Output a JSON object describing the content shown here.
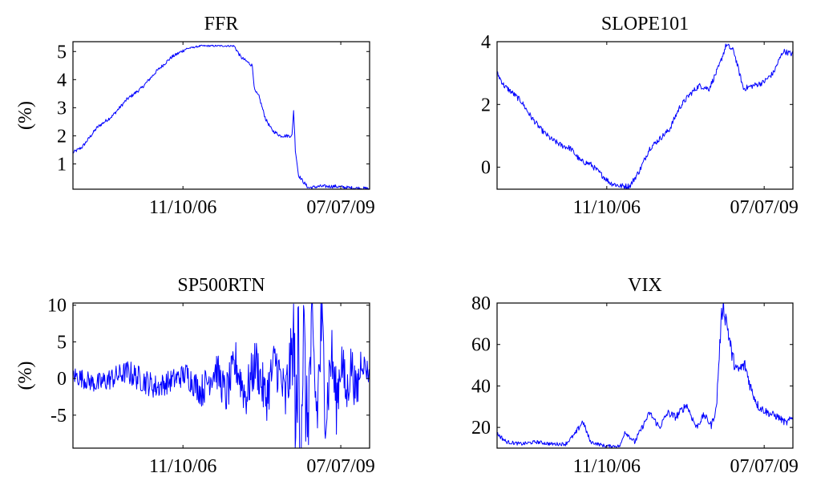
{
  "chart_data": [
    {
      "type": "line",
      "title": "FFR",
      "xlabel": "",
      "ylabel": "(%)",
      "xlim": [
        "2005-01-03",
        "2009-12-31"
      ],
      "ylim": [
        0.1,
        5.35
      ],
      "xticks": [
        "11/10/06",
        "07/07/09"
      ],
      "yticks": [
        1,
        2,
        3,
        4,
        5
      ],
      "grid": false,
      "series": [
        {
          "x": [
            "2005-01-03",
            "2005-03-01",
            "2005-06-01",
            "2005-09-01",
            "2005-12-01",
            "2006-03-01",
            "2006-06-01",
            "2006-09-01",
            "2006-12-01",
            "2007-03-01",
            "2007-06-01",
            "2007-08-01",
            "2007-09-20",
            "2007-11-01",
            "2008-01-10",
            "2008-01-25",
            "2008-02-20",
            "2008-04-01",
            "2008-05-10",
            "2008-07-01",
            "2008-09-10",
            "2008-09-20",
            "2008-10-01",
            "2008-10-20",
            "2008-11-20",
            "2008-12-20",
            "2009-03-01",
            "2009-06-01",
            "2009-09-01",
            "2009-12-31"
          ],
          "y": [
            1.4,
            1.6,
            2.3,
            2.7,
            3.3,
            3.7,
            4.3,
            4.8,
            5.1,
            5.2,
            5.2,
            5.2,
            5.2,
            4.8,
            4.5,
            3.6,
            3.4,
            2.6,
            2.2,
            2.0,
            2.0,
            2.9,
            1.5,
            0.6,
            0.35,
            0.15,
            0.2,
            0.2,
            0.15,
            0.12
          ]
        }
      ]
    },
    {
      "type": "line",
      "title": "SLOPE101",
      "xlabel": "",
      "ylabel": "",
      "xlim": [
        "2005-01-03",
        "2009-12-31"
      ],
      "ylim": [
        -0.7,
        4.0
      ],
      "xticks": [
        "11/10/06",
        "07/07/09"
      ],
      "yticks": [
        0,
        2,
        4
      ],
      "grid": false,
      "series": [
        {
          "x": [
            "2005-01-03",
            "2005-02-15",
            "2005-04-01",
            "2005-06-01",
            "2005-08-01",
            "2005-10-01",
            "2005-12-01",
            "2006-02-01",
            "2006-04-01",
            "2006-06-01",
            "2006-08-01",
            "2006-10-01",
            "2006-12-01",
            "2007-02-01",
            "2007-04-01",
            "2007-06-01",
            "2007-08-01",
            "2007-10-01",
            "2007-12-01",
            "2008-02-01",
            "2008-04-01",
            "2008-06-01",
            "2008-08-01",
            "2008-10-01",
            "2008-11-15",
            "2009-01-01",
            "2009-03-01",
            "2009-05-01",
            "2009-07-01",
            "2009-09-01",
            "2009-11-01",
            "2009-12-31"
          ],
          "y": [
            3.0,
            2.6,
            2.4,
            2.1,
            1.6,
            1.2,
            0.9,
            0.7,
            0.6,
            0.2,
            0.1,
            -0.2,
            -0.5,
            -0.6,
            -0.6,
            -0.1,
            0.6,
            0.9,
            1.2,
            1.9,
            2.3,
            2.6,
            2.5,
            3.2,
            3.9,
            3.7,
            2.5,
            2.6,
            2.7,
            3.0,
            3.7,
            3.6
          ]
        }
      ]
    },
    {
      "type": "line",
      "title": "SP500RTN",
      "xlabel": "",
      "ylabel": "(%)",
      "xlim": [
        "2005-01-03",
        "2009-12-31"
      ],
      "ylim": [
        -9.5,
        10.3
      ],
      "xticks": [
        "11/10/06",
        "07/07/09"
      ],
      "yticks": [
        -5,
        0,
        5,
        10
      ],
      "grid": false,
      "series": [
        {
          "x": [
            "2005-01-03",
            "2005-06-01",
            "2005-12-01",
            "2006-06-01",
            "2006-12-01",
            "2007-03-01",
            "2007-06-01",
            "2007-08-01",
            "2007-10-01",
            "2007-12-01",
            "2008-02-01",
            "2008-04-01",
            "2008-06-01",
            "2008-08-01",
            "2008-09-20",
            "2008-10-10",
            "2008-10-20",
            "2008-11-01",
            "2008-11-20",
            "2008-12-10",
            "2009-01-10",
            "2009-02-10",
            "2009-03-10",
            "2009-04-10",
            "2009-05-10",
            "2009-06-10",
            "2009-07-10",
            "2009-08-10",
            "2009-09-10",
            "2009-10-10",
            "2009-11-10",
            "2009-12-31"
          ],
          "y": [
            0.5,
            -0.8,
            0.9,
            -1.2,
            0.6,
            -1.8,
            1.4,
            -2.3,
            2.1,
            -2.5,
            2.4,
            -2.8,
            2.6,
            -2.9,
            4.8,
            -9.3,
            10.2,
            -8.6,
            6.5,
            -6.8,
            5.5,
            -4.9,
            6.8,
            -4.2,
            3.6,
            -3.5,
            3.0,
            -2.6,
            2.2,
            -2.5,
            2.5,
            0.5
          ]
        }
      ]
    },
    {
      "type": "line",
      "title": "VIX",
      "xlabel": "",
      "ylabel": "",
      "xlim": [
        "2005-01-03",
        "2009-12-31"
      ],
      "ylim": [
        10,
        80
      ],
      "xticks": [
        "11/10/06",
        "07/07/09"
      ],
      "yticks": [
        20,
        40,
        60,
        80
      ],
      "grid": false,
      "series": [
        {
          "x": [
            "2005-01-03",
            "2005-03-01",
            "2005-06-01",
            "2005-09-01",
            "2005-12-01",
            "2006-03-01",
            "2006-05-01",
            "2006-06-15",
            "2006-08-01",
            "2006-11-01",
            "2007-02-01",
            "2007-03-01",
            "2007-05-01",
            "2007-08-01",
            "2007-10-01",
            "2007-11-20",
            "2008-01-10",
            "2008-03-15",
            "2008-05-15",
            "2008-07-01",
            "2008-08-15",
            "2008-09-15",
            "2008-10-10",
            "2008-10-25",
            "2008-11-20",
            "2008-12-20",
            "2009-01-20",
            "2009-03-10",
            "2009-04-20",
            "2009-06-01",
            "2009-08-01",
            "2009-10-01",
            "2009-11-20",
            "2009-12-31"
          ],
          "y": [
            17,
            13,
            12,
            13,
            12,
            12,
            17,
            23,
            13,
            11,
            11,
            18,
            13,
            27,
            20,
            27,
            25,
            31,
            20,
            26,
            21,
            29,
            65,
            80,
            70,
            55,
            47,
            50,
            38,
            30,
            27,
            25,
            22,
            25
          ]
        }
      ]
    }
  ]
}
